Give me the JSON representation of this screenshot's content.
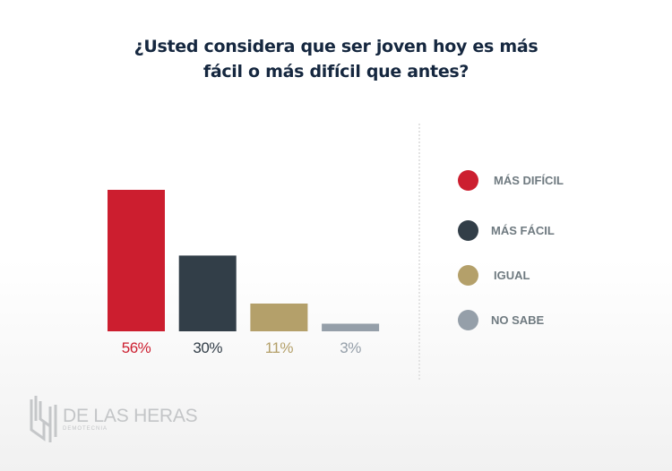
{
  "title": {
    "line1": "¿Usted considera que ser joven hoy es más",
    "line2": "fácil o más difícil que antes?"
  },
  "chart_data": {
    "type": "bar",
    "title": "¿Usted considera que ser joven hoy es más fácil o más difícil que antes?",
    "categories": [
      "MÁS DIFÍCIL",
      "MÁS FÁCIL",
      "IGUAL",
      "NO SABE"
    ],
    "values": [
      56,
      30,
      11,
      3
    ],
    "value_labels": [
      "56%",
      "30%",
      "11%",
      "3%"
    ],
    "colors": [
      "#cc1e2f",
      "#323e48",
      "#b4a06a",
      "#959fa9"
    ],
    "xlabel": "",
    "ylabel": "",
    "ylim": [
      0,
      56
    ],
    "grid": false,
    "legend_position": "right"
  },
  "legend": [
    {
      "label": "MÁS DIFÍCIL",
      "color": "#cc1e2f"
    },
    {
      "label": "MÁS FÁCIL",
      "color": "#323e48"
    },
    {
      "label": "IGUAL",
      "color": "#b4a06a"
    },
    {
      "label": "NO SABE",
      "color": "#959fa9"
    }
  ],
  "logo": {
    "name": "DE LAS HERAS",
    "subtitle": "DEMOTECNIA"
  }
}
